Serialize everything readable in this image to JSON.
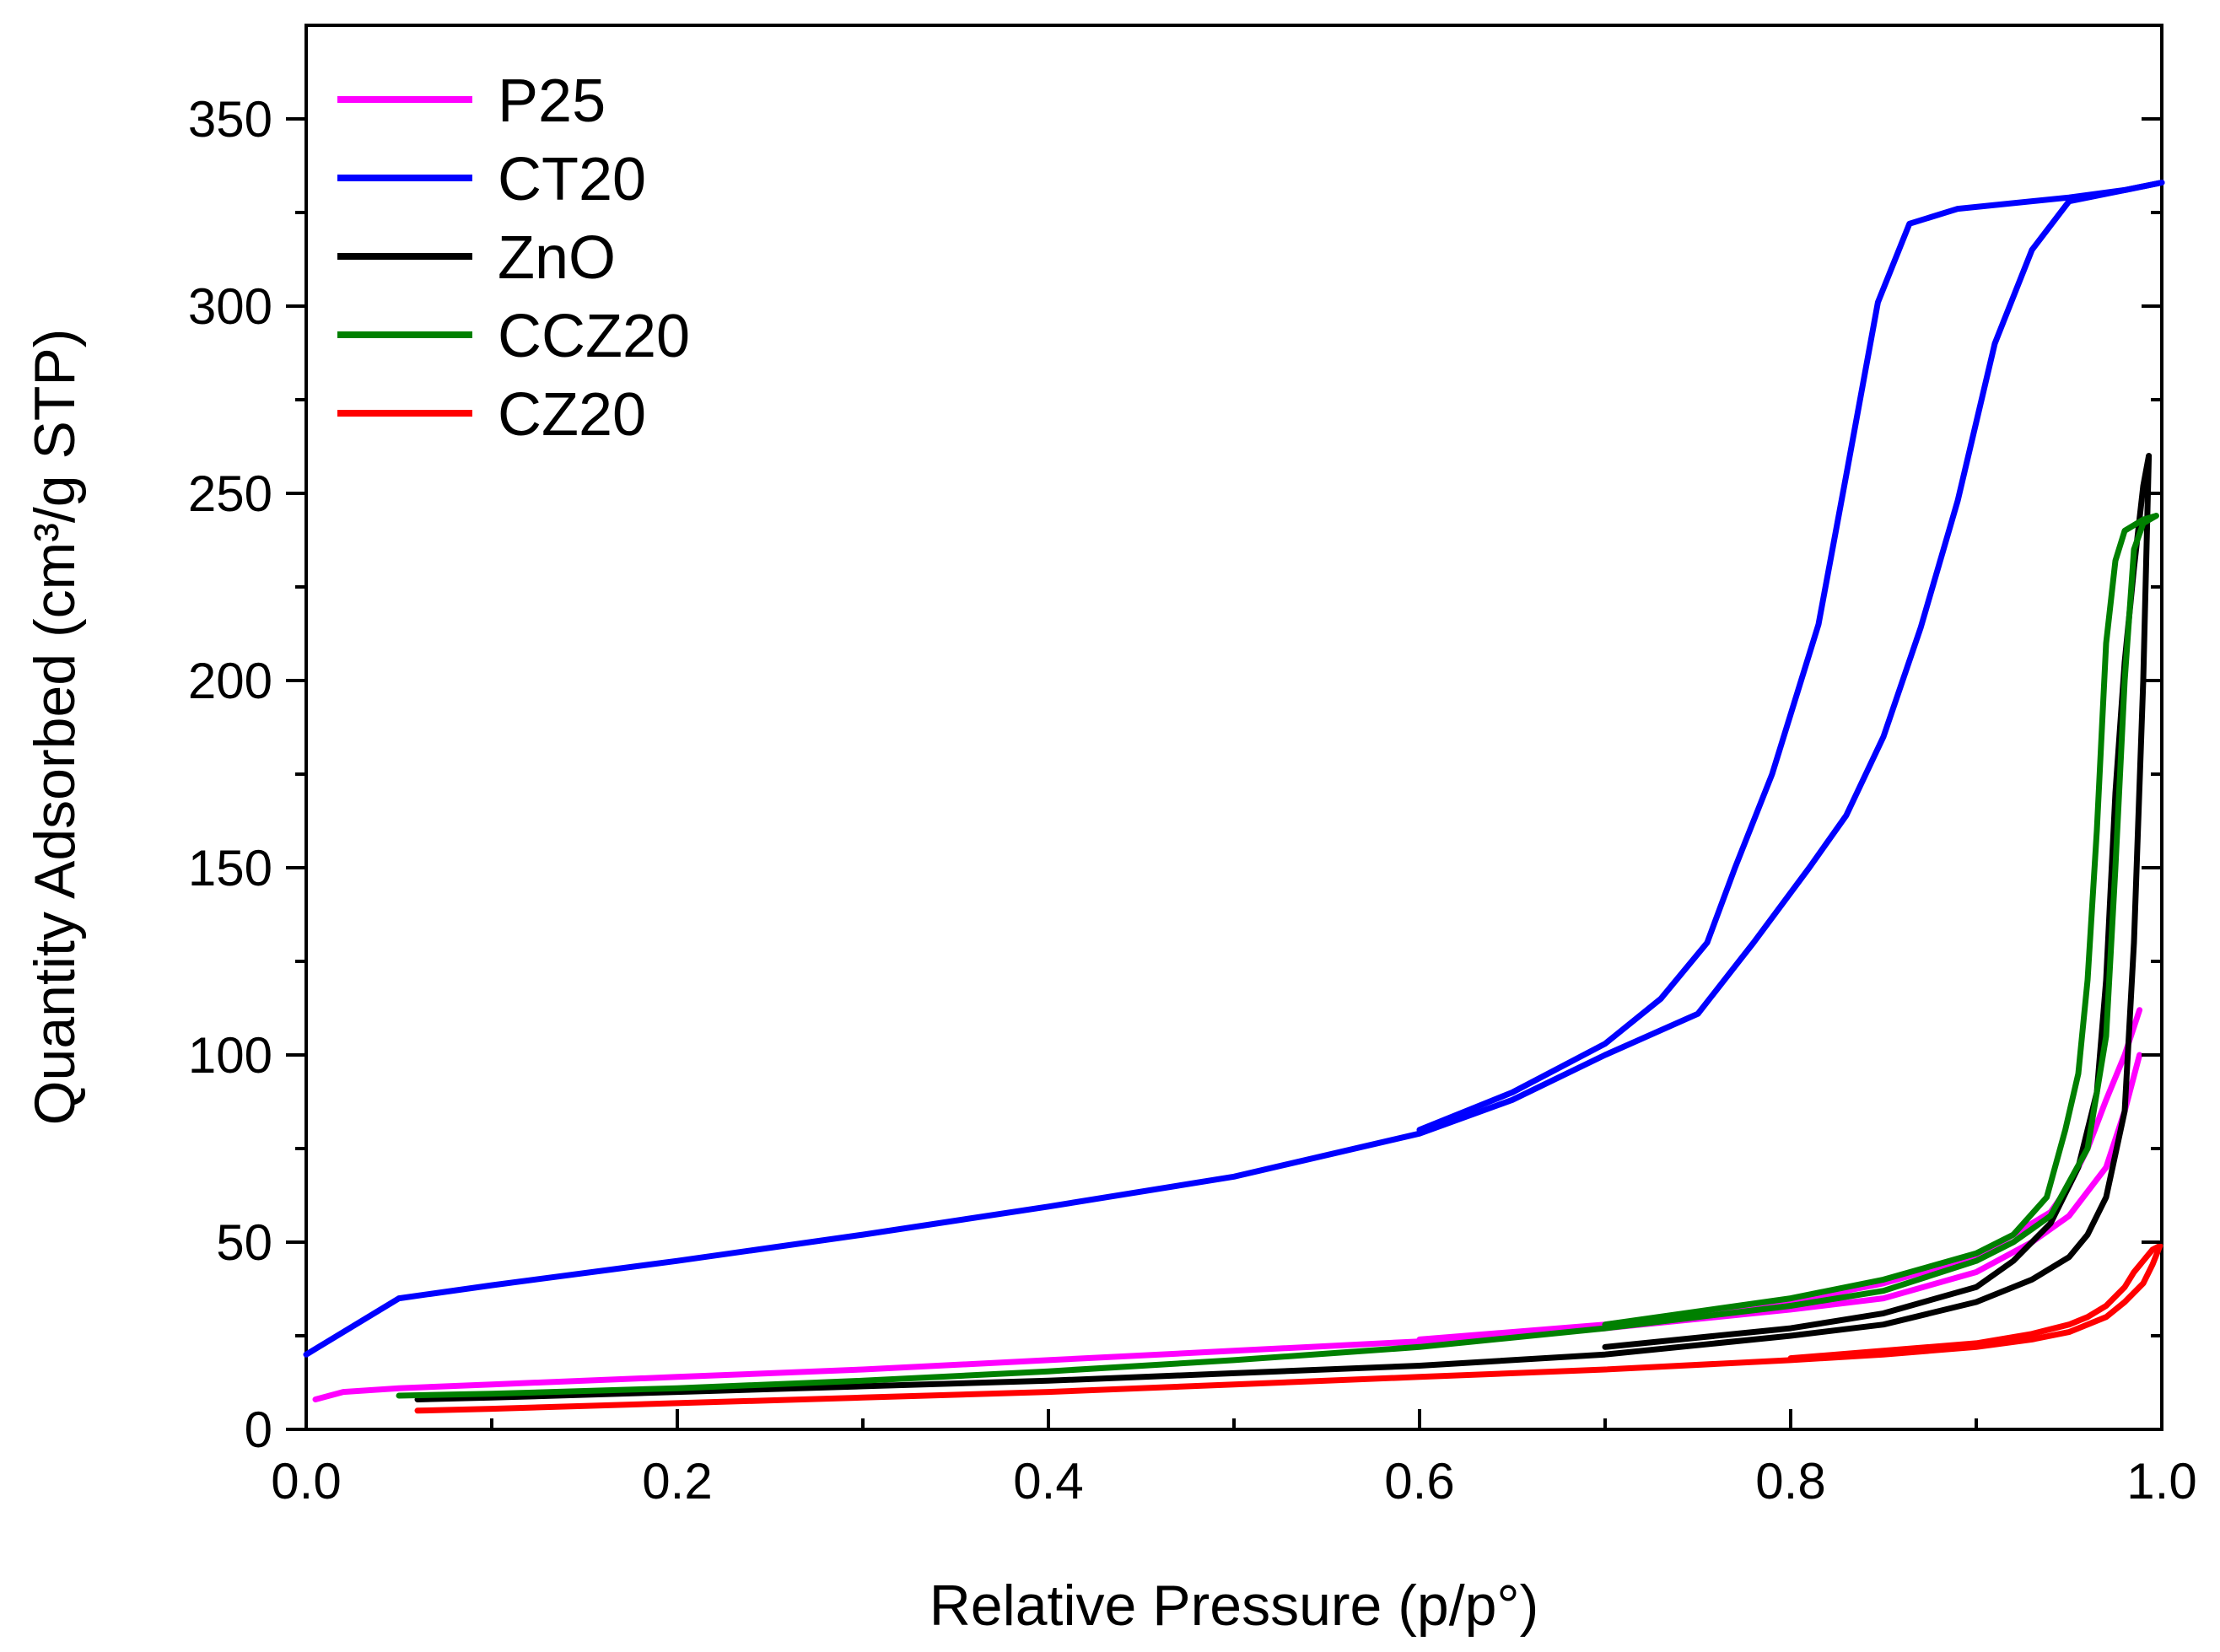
{
  "chart_data": {
    "type": "line",
    "title": "",
    "xlabel": "Relative Pressure (p/p°)",
    "ylabel": "Quantity Adsorbed (cm³/g STP)",
    "xlim": [
      0.0,
      1.0
    ],
    "ylim": [
      0,
      375
    ],
    "x_ticks": [
      0.0,
      0.2,
      0.4,
      0.6,
      0.8,
      1.0
    ],
    "x_tick_labels": [
      "0.0",
      "0.2",
      "0.4",
      "0.6",
      "0.8",
      "1.0"
    ],
    "y_ticks": [
      0,
      50,
      100,
      150,
      200,
      250,
      300,
      350
    ],
    "y_tick_labels": [
      "0",
      "50",
      "100",
      "150",
      "200",
      "250",
      "300",
      "350"
    ],
    "grid": false,
    "legend_position": "top-left",
    "series": [
      {
        "name": "P25",
        "color": "#ff00ff",
        "adsorption": [
          [
            0.005,
            8
          ],
          [
            0.02,
            10
          ],
          [
            0.05,
            11
          ],
          [
            0.1,
            12
          ],
          [
            0.2,
            14
          ],
          [
            0.3,
            16
          ],
          [
            0.4,
            18.5
          ],
          [
            0.5,
            21
          ],
          [
            0.6,
            23.5
          ],
          [
            0.7,
            27
          ],
          [
            0.8,
            32
          ],
          [
            0.85,
            35
          ],
          [
            0.9,
            42
          ],
          [
            0.93,
            50
          ],
          [
            0.95,
            57
          ],
          [
            0.97,
            70
          ],
          [
            0.98,
            85
          ],
          [
            0.988,
            100
          ]
        ],
        "desorption": [
          [
            0.988,
            112
          ],
          [
            0.98,
            100
          ],
          [
            0.97,
            88
          ],
          [
            0.96,
            75
          ],
          [
            0.95,
            65
          ],
          [
            0.94,
            58
          ],
          [
            0.92,
            52
          ],
          [
            0.9,
            46
          ],
          [
            0.85,
            39
          ],
          [
            0.8,
            34
          ],
          [
            0.7,
            28
          ],
          [
            0.6,
            24
          ]
        ]
      },
      {
        "name": "CT20",
        "color": "#0000ff",
        "adsorption": [
          [
            0.0,
            20
          ],
          [
            0.05,
            35
          ],
          [
            0.1,
            38.5
          ],
          [
            0.2,
            45
          ],
          [
            0.3,
            52
          ],
          [
            0.4,
            59.5
          ],
          [
            0.5,
            67.5
          ],
          [
            0.6,
            79
          ],
          [
            0.65,
            88
          ],
          [
            0.7,
            100
          ],
          [
            0.75,
            111
          ],
          [
            0.78,
            130
          ],
          [
            0.81,
            150
          ],
          [
            0.83,
            164
          ],
          [
            0.85,
            185
          ],
          [
            0.87,
            214
          ],
          [
            0.89,
            248
          ],
          [
            0.91,
            290
          ],
          [
            0.93,
            315
          ],
          [
            0.95,
            328
          ],
          [
            0.98,
            331
          ],
          [
            1.0,
            333
          ]
        ],
        "desorption": [
          [
            1.0,
            333
          ],
          [
            0.98,
            331
          ],
          [
            0.95,
            329
          ],
          [
            0.91,
            327
          ],
          [
            0.89,
            326
          ],
          [
            0.864,
            322
          ],
          [
            0.847,
            301
          ],
          [
            0.83,
            255
          ],
          [
            0.815,
            215
          ],
          [
            0.79,
            175
          ],
          [
            0.77,
            150
          ],
          [
            0.755,
            130
          ],
          [
            0.73,
            115
          ],
          [
            0.7,
            103
          ],
          [
            0.65,
            90
          ],
          [
            0.6,
            80
          ]
        ]
      },
      {
        "name": "ZnO",
        "color": "#000000",
        "adsorption": [
          [
            0.06,
            8
          ],
          [
            0.1,
            8.5
          ],
          [
            0.2,
            10
          ],
          [
            0.3,
            11.5
          ],
          [
            0.4,
            13
          ],
          [
            0.5,
            15
          ],
          [
            0.6,
            17
          ],
          [
            0.7,
            20
          ],
          [
            0.8,
            25
          ],
          [
            0.85,
            28
          ],
          [
            0.9,
            34
          ],
          [
            0.93,
            40
          ],
          [
            0.95,
            46
          ],
          [
            0.96,
            52
          ],
          [
            0.97,
            62
          ],
          [
            0.98,
            85
          ],
          [
            0.985,
            130
          ],
          [
            0.99,
            200
          ],
          [
            0.993,
            260
          ]
        ],
        "desorption": [
          [
            0.993,
            260
          ],
          [
            0.99,
            252
          ],
          [
            0.985,
            230
          ],
          [
            0.98,
            205
          ],
          [
            0.975,
            170
          ],
          [
            0.97,
            120
          ],
          [
            0.965,
            90
          ],
          [
            0.955,
            70
          ],
          [
            0.94,
            55
          ],
          [
            0.92,
            45
          ],
          [
            0.9,
            38
          ],
          [
            0.85,
            31
          ],
          [
            0.8,
            27
          ],
          [
            0.7,
            22
          ]
        ]
      },
      {
        "name": "CCZ20",
        "color": "#008000",
        "adsorption": [
          [
            0.05,
            9
          ],
          [
            0.1,
            9.5
          ],
          [
            0.2,
            11
          ],
          [
            0.3,
            13
          ],
          [
            0.4,
            15.5
          ],
          [
            0.5,
            18.5
          ],
          [
            0.6,
            22
          ],
          [
            0.7,
            27
          ],
          [
            0.8,
            33
          ],
          [
            0.85,
            37
          ],
          [
            0.9,
            45
          ],
          [
            0.92,
            50
          ],
          [
            0.94,
            57
          ],
          [
            0.96,
            75
          ],
          [
            0.97,
            105
          ],
          [
            0.975,
            150
          ],
          [
            0.98,
            200
          ],
          [
            0.985,
            235
          ],
          [
            0.99,
            242
          ],
          [
            0.997,
            244
          ]
        ],
        "desorption": [
          [
            0.997,
            244
          ],
          [
            0.99,
            243
          ],
          [
            0.98,
            240
          ],
          [
            0.975,
            232
          ],
          [
            0.97,
            210
          ],
          [
            0.965,
            160
          ],
          [
            0.96,
            120
          ],
          [
            0.955,
            95
          ],
          [
            0.948,
            80
          ],
          [
            0.938,
            62
          ],
          [
            0.92,
            52
          ],
          [
            0.9,
            47
          ],
          [
            0.85,
            40
          ],
          [
            0.8,
            35
          ],
          [
            0.7,
            28
          ]
        ]
      },
      {
        "name": "CZ20",
        "color": "#ff0000",
        "adsorption": [
          [
            0.06,
            5
          ],
          [
            0.1,
            5.5
          ],
          [
            0.2,
            7
          ],
          [
            0.3,
            8.5
          ],
          [
            0.4,
            10
          ],
          [
            0.5,
            12
          ],
          [
            0.6,
            14
          ],
          [
            0.7,
            16
          ],
          [
            0.8,
            18.5
          ],
          [
            0.85,
            20
          ],
          [
            0.9,
            22
          ],
          [
            0.93,
            24
          ],
          [
            0.95,
            26
          ],
          [
            0.97,
            30
          ],
          [
            0.98,
            34
          ],
          [
            0.99,
            39
          ],
          [
            0.995,
            44
          ],
          [
            0.999,
            49
          ]
        ],
        "desorption": [
          [
            0.999,
            49
          ],
          [
            0.995,
            48
          ],
          [
            0.99,
            45
          ],
          [
            0.985,
            42
          ],
          [
            0.98,
            38
          ],
          [
            0.97,
            33
          ],
          [
            0.96,
            30
          ],
          [
            0.95,
            28
          ],
          [
            0.93,
            25.5
          ],
          [
            0.9,
            23
          ],
          [
            0.85,
            21
          ],
          [
            0.8,
            19
          ]
        ]
      }
    ]
  }
}
